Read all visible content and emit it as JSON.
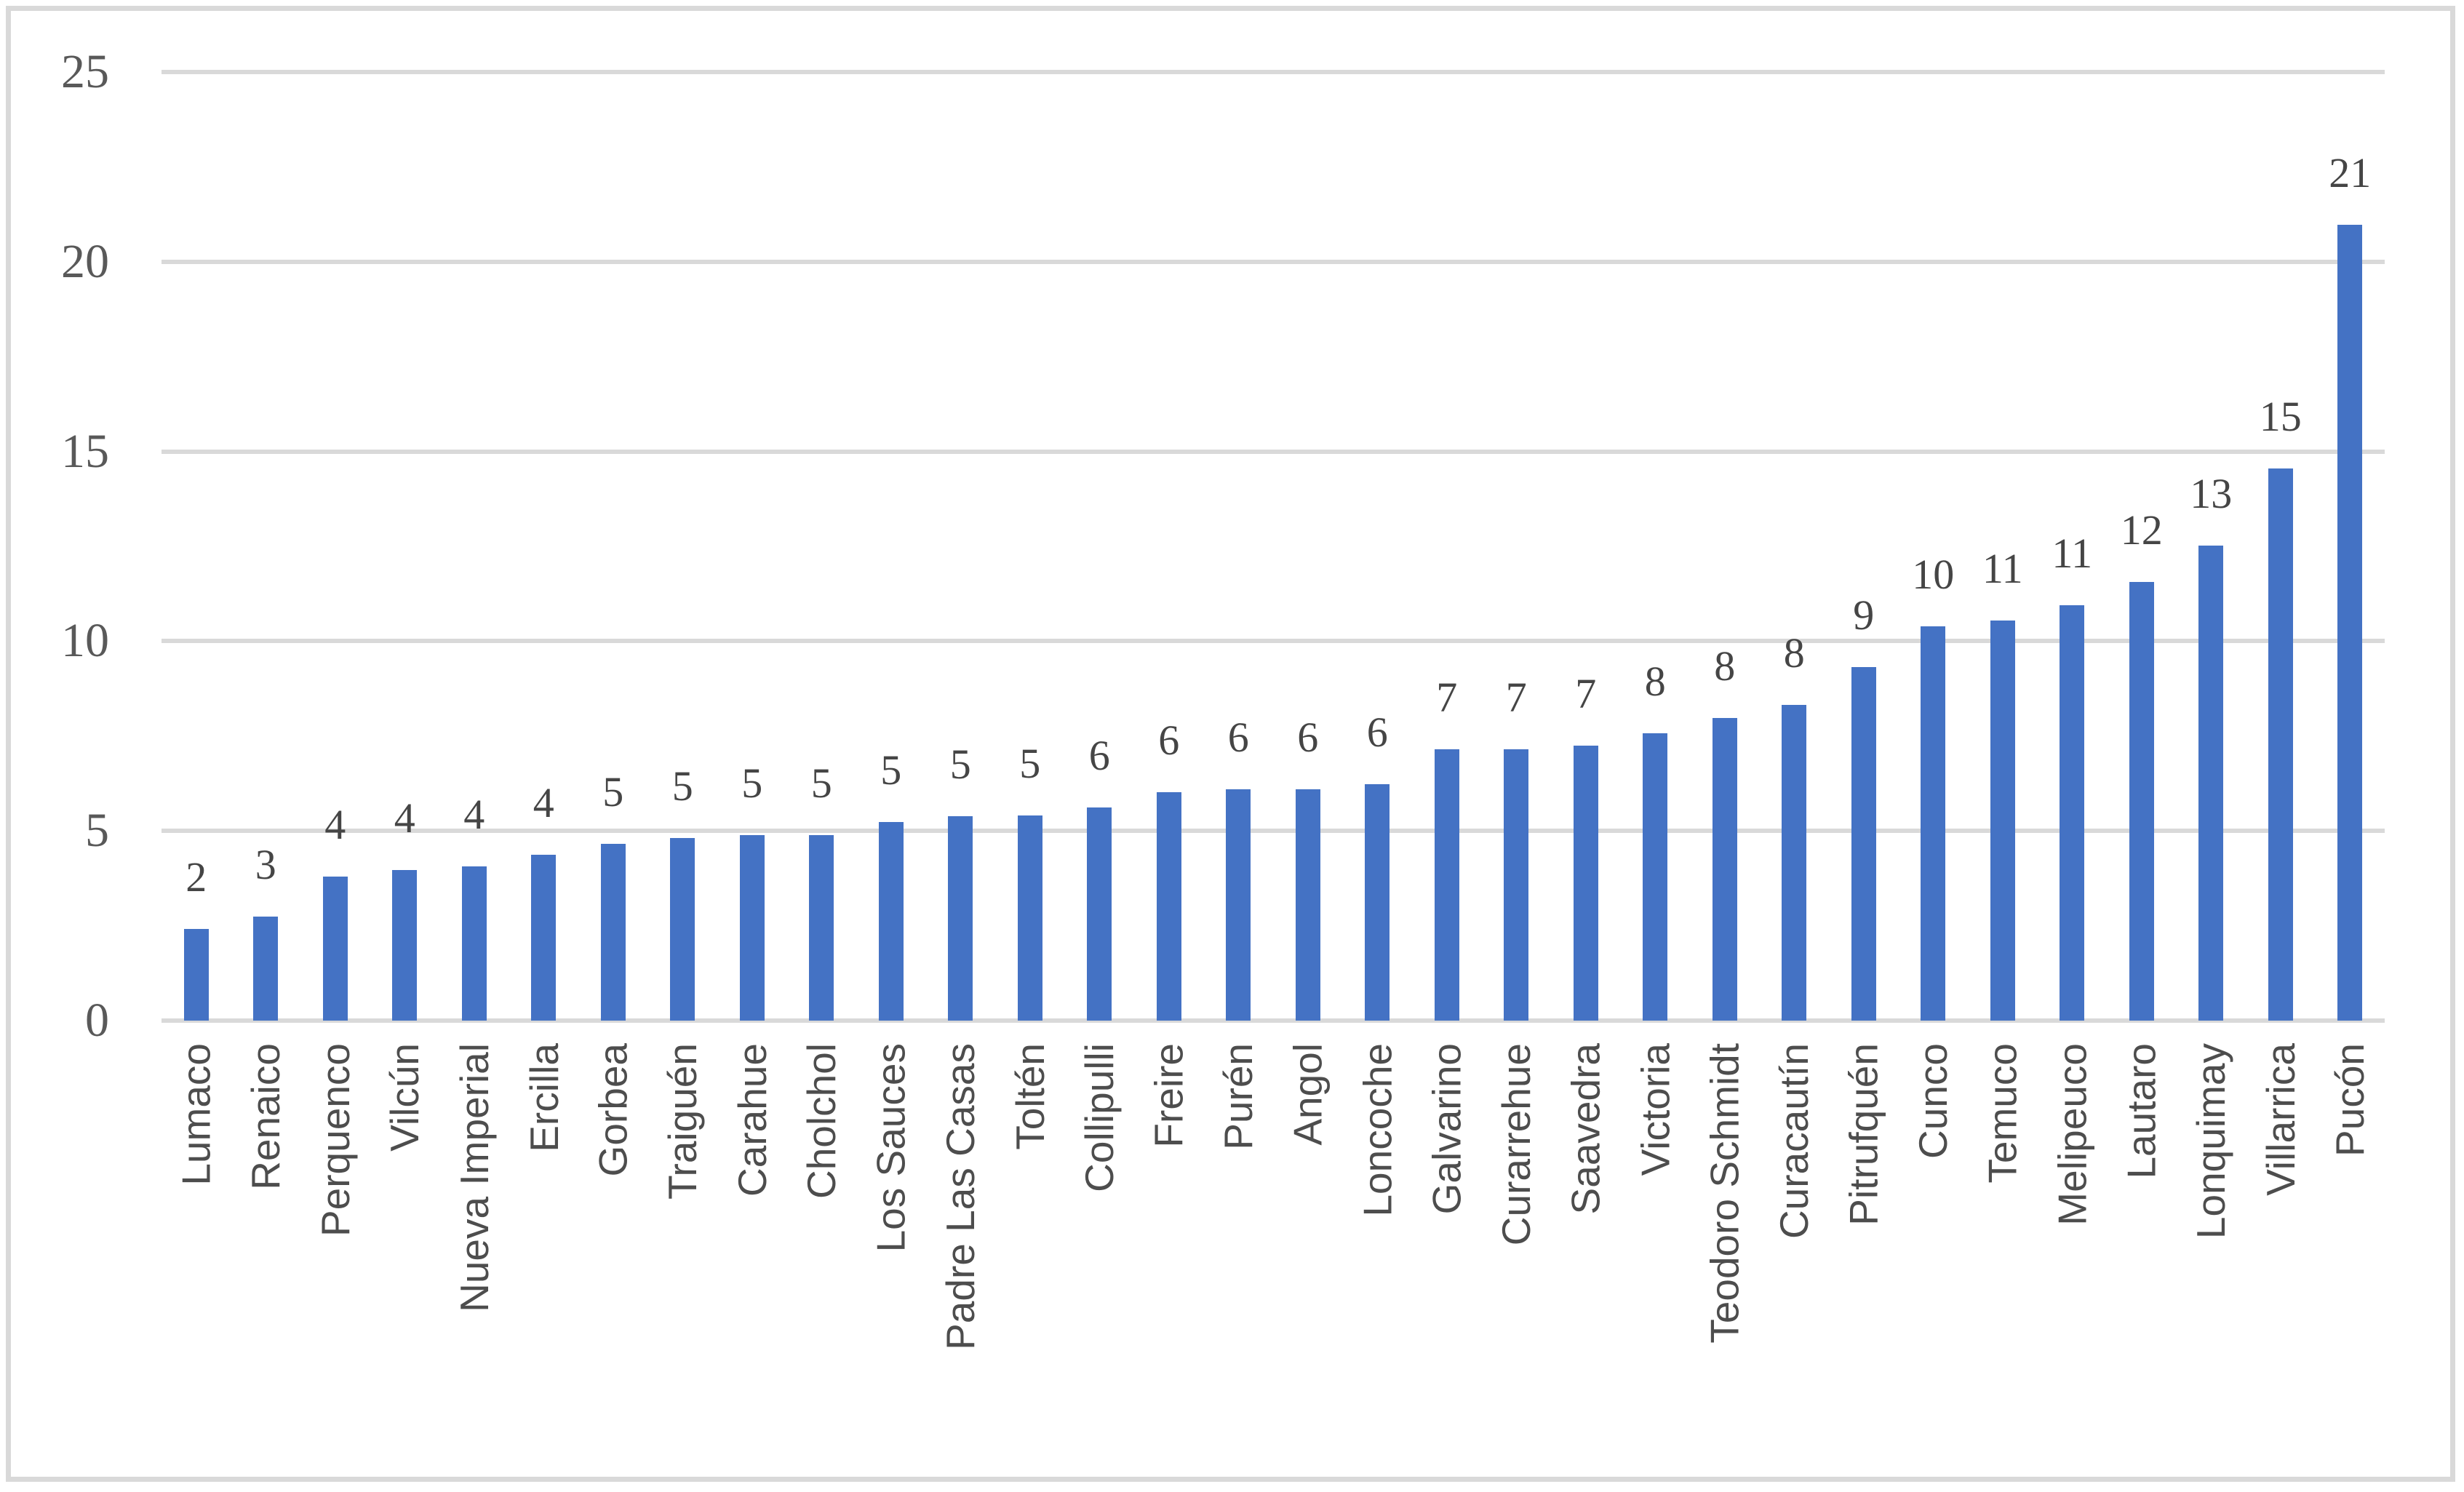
{
  "chart_data": {
    "type": "bar",
    "title": "",
    "xlabel": "",
    "ylabel": "",
    "legend": false,
    "grid": true,
    "ylim": [
      0,
      25
    ],
    "yticks": [
      0,
      5,
      10,
      15,
      20,
      25
    ],
    "ytick_labels": [
      "0",
      "5",
      "10",
      "15",
      "20",
      "25"
    ],
    "categories": [
      "Lumaco",
      "Renaico",
      "Perquenco",
      "Vilcún",
      "Nueva Imperial",
      "Ercilla",
      "Gorbea",
      "Traiguén",
      "Carahue",
      "Cholchol",
      "Los Sauces",
      "Padre Las Casas",
      "Toltén",
      "Collipulli",
      "Freire",
      "Purén",
      "Angol",
      "Loncoche",
      "Galvarino",
      "Curarrehue",
      "Saavedra",
      "Victoria",
      "Teodoro Schmidt",
      "Curacautín",
      "Pitrufquén",
      "Cunco",
      "Temuco",
      "Melipeuco",
      "Lautaro",
      "Lonquimay",
      "Villarrica",
      "Pucón"
    ],
    "values": [
      2.42,
      2.74,
      3.8,
      3.96,
      4.07,
      4.37,
      4.66,
      4.81,
      4.88,
      4.88,
      5.24,
      5.39,
      5.4,
      5.62,
      6.02,
      6.1,
      6.1,
      6.24,
      7.16,
      7.16,
      7.24,
      7.58,
      7.97,
      8.32,
      9.32,
      10.4,
      10.55,
      10.94,
      11.56,
      12.51,
      14.56,
      20.97
    ],
    "data_labels": [
      "2",
      "3",
      "4",
      "4",
      "4",
      "4",
      "5",
      "5",
      "5",
      "5",
      "5",
      "5",
      "5",
      "6",
      "6",
      "6",
      "6",
      "6",
      "7",
      "7",
      "7",
      "8",
      "8",
      "8",
      "9",
      "10",
      "11",
      "11",
      "12",
      "13",
      "15",
      "21"
    ],
    "colors": {
      "bar": "#4472C4",
      "gridline": "#d9d9d9",
      "axis_line": "#d9d9d9",
      "chart_border": "#d9d9d9",
      "tick_label": "#595959",
      "data_label": "#454545",
      "category_label": "#4d4d4d",
      "background": "#ffffff"
    }
  }
}
